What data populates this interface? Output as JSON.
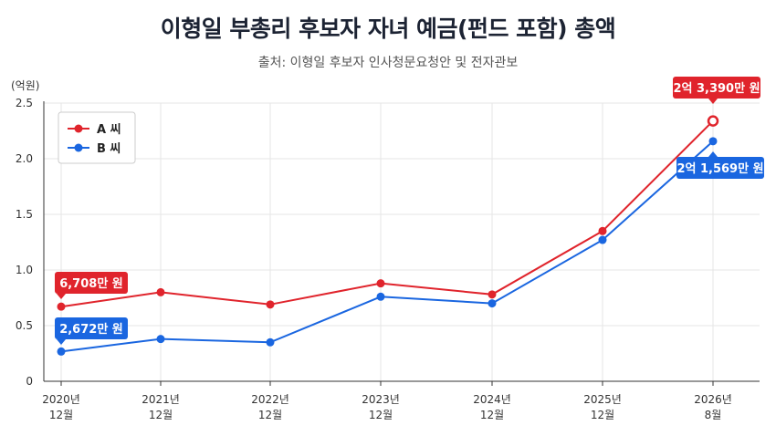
{
  "title": "이형일 부총리 후보자 자녀 예금(펀드 포함) 총액",
  "subtitle": "출처: 이형일 후보자 인사청문요청안 및 전자관보",
  "chart_data": {
    "type": "line",
    "ylabel": "(억원)",
    "ylim": [
      0,
      2.5
    ],
    "yticks": [
      "0",
      "0.5",
      "1.0",
      "1.5",
      "2.0",
      "2.5"
    ],
    "categories": [
      [
        "2020년",
        "12월"
      ],
      [
        "2021년",
        "12월"
      ],
      [
        "2022년",
        "12월"
      ],
      [
        "2023년",
        "12월"
      ],
      [
        "2024년",
        "12월"
      ],
      [
        "2025년",
        "12월"
      ],
      [
        "2026년",
        "8월"
      ]
    ],
    "series": [
      {
        "name": "A 씨",
        "color": "#e0242c",
        "values": [
          0.6708,
          0.8,
          0.69,
          0.88,
          0.78,
          1.35,
          2.339
        ],
        "callouts": [
          {
            "index": 0,
            "label": "6,708만 원"
          },
          {
            "index": 6,
            "label": "2억 3,390만 원"
          }
        ]
      },
      {
        "name": "B 씨",
        "color": "#1a66e0",
        "values": [
          0.2672,
          0.38,
          0.35,
          0.76,
          0.7,
          1.27,
          2.1569
        ],
        "callouts": [
          {
            "index": 0,
            "label": "2,672만 원"
          },
          {
            "index": 6,
            "label": "2억 1,569만 원"
          }
        ]
      }
    ],
    "legend": "top-left",
    "grid": true
  }
}
